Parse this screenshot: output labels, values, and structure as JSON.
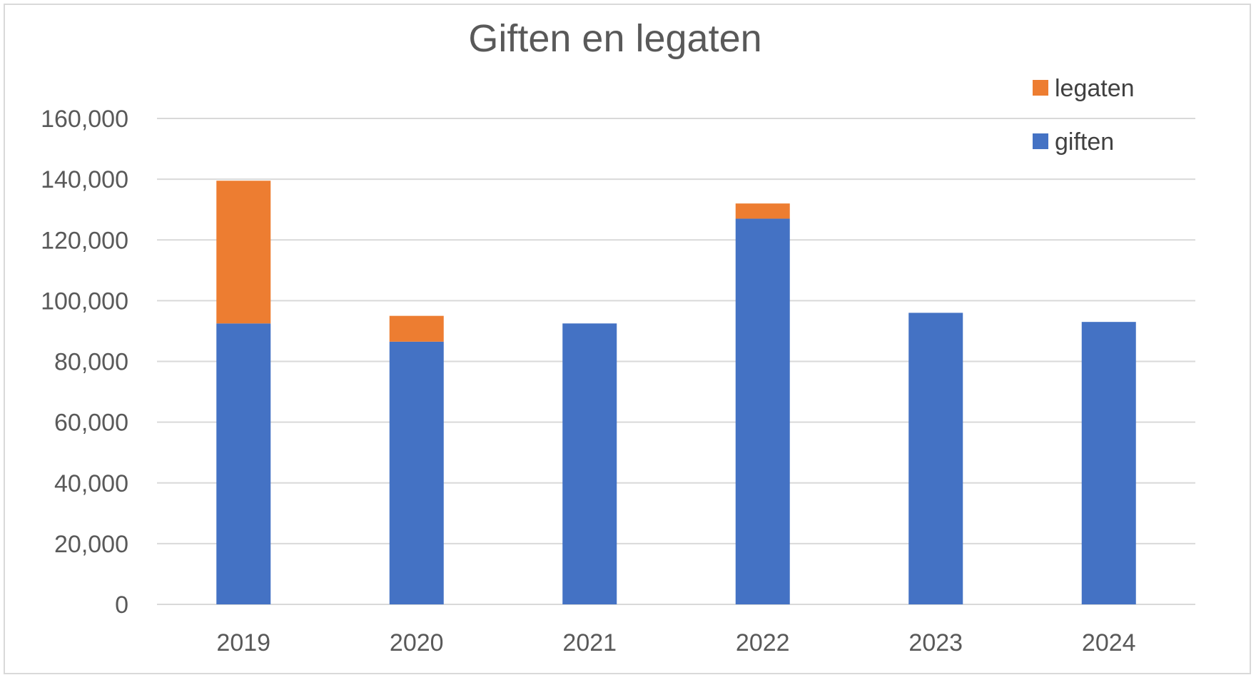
{
  "chart_data": {
    "type": "bar",
    "stacked": true,
    "title": "Giften en legaten",
    "xlabel": "",
    "ylabel": "",
    "categories": [
      "2019",
      "2020",
      "2021",
      "2022",
      "2023",
      "2024"
    ],
    "series": [
      {
        "name": "giften",
        "values": [
          92500,
          86500,
          92500,
          127000,
          96000,
          93000
        ],
        "color": "#4472c4"
      },
      {
        "name": "legaten",
        "values": [
          47000,
          8500,
          0,
          5000,
          0,
          0
        ],
        "color": "#ed7d31"
      }
    ],
    "ylim": [
      0,
      160000
    ],
    "yticks": [
      "0",
      "20,000",
      "40,000",
      "60,000",
      "80,000",
      "100,000",
      "120,000",
      "140,000",
      "160,000"
    ],
    "grid": true,
    "legend_position": "top-right",
    "legend_order": [
      "legaten",
      "giften"
    ]
  }
}
